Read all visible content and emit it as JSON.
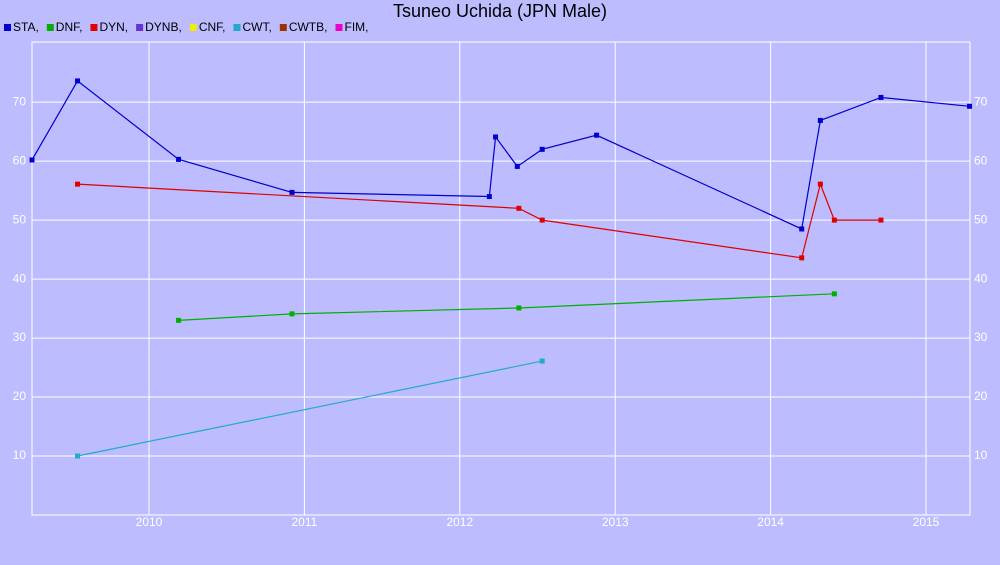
{
  "chart_data": {
    "type": "line",
    "title": "Tsuneo Uchida (JPN Male)",
    "xlim": [
      2009.247,
      2015.283
    ],
    "xticks": [
      2010,
      2011,
      2012,
      2013,
      2014,
      2015
    ],
    "ylim": [
      0,
      80.2
    ],
    "yticks": [
      10,
      20,
      30,
      40,
      50,
      60,
      70
    ],
    "grid": true,
    "series": [
      {
        "name": "STA,",
        "color": "#0000cc",
        "x": [
          2009.247,
          2009.54,
          2010.19,
          2010.92,
          2012.19,
          2012.23,
          2012.37,
          2012.53,
          2012.88,
          2014.2,
          2014.32,
          2014.71,
          2015.28
        ],
        "values": [
          60.2,
          73.6,
          60.3,
          54.7,
          54.0,
          64.1,
          59.1,
          62.0,
          64.4,
          48.5,
          66.9,
          70.8,
          69.3
        ]
      },
      {
        "name": "DNF,",
        "color": "#00b000",
        "x": [
          2010.19,
          2010.92,
          2012.38,
          2014.41
        ],
        "values": [
          33.0,
          34.1,
          35.1,
          37.5
        ]
      },
      {
        "name": "DYN,",
        "color": "#e00000",
        "x": [
          2009.54,
          2012.38,
          2012.53,
          2014.2,
          2014.32,
          2014.41,
          2014.71
        ],
        "values": [
          56.1,
          52.0,
          50.0,
          43.6,
          56.1,
          50.0,
          50.0
        ]
      },
      {
        "name": "DYNB,",
        "color": "#6633cc",
        "x": [],
        "values": []
      },
      {
        "name": "CNF,",
        "color": "#eeee00",
        "x": [],
        "values": []
      },
      {
        "name": "CWT,",
        "color": "#22aacc",
        "x": [
          2009.54,
          2012.53
        ],
        "values": [
          10.0,
          26.1
        ]
      },
      {
        "name": "CWTB,",
        "color": "#993300",
        "x": [],
        "values": []
      },
      {
        "name": "FIM,",
        "color": "#ee00cc",
        "x": [],
        "values": []
      }
    ]
  }
}
